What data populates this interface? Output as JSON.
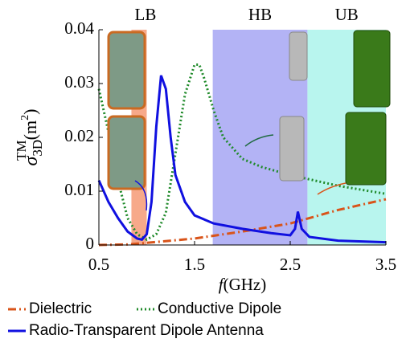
{
  "chart_data": {
    "type": "line",
    "xlabel": [
      "f",
      "(GHz)"
    ],
    "ylabel": [
      "σ",
      "3D",
      "TM",
      "(m",
      "2",
      ")"
    ],
    "xlim": [
      0.5,
      3.5
    ],
    "xticks": [
      0.5,
      1.5,
      2.5,
      3.5
    ],
    "ylim": [
      0,
      0.04
    ],
    "yticks": [
      0,
      0.01,
      0.02,
      0.03,
      0.04
    ],
    "grid": false,
    "bands": [
      {
        "label": "LB",
        "range": [
          0.84,
          1.0
        ],
        "color": "#f7a98a"
      },
      {
        "label": "HB",
        "range": [
          1.69,
          2.68
        ],
        "color": "#b3b3f5"
      },
      {
        "label": "UB",
        "range": [
          2.68,
          3.5
        ],
        "color": "#b8f5ee"
      }
    ],
    "series": [
      {
        "name": "Dielectric",
        "color": "#d9541a",
        "dash": "10 4 2 4",
        "x": [
          0.5,
          0.8,
          1.0,
          1.5,
          2.0,
          2.5,
          3.0,
          3.5
        ],
        "values": [
          0,
          0.0001,
          0.0004,
          0.0012,
          0.0025,
          0.004,
          0.0065,
          0.0085
        ]
      },
      {
        "name": "Conductive Dipole",
        "color": "#1f8a2a",
        "dash": "2 3",
        "x": [
          0.5,
          0.6,
          0.7,
          0.8,
          0.9,
          1.0,
          1.1,
          1.2,
          1.3,
          1.4,
          1.5,
          1.55,
          1.6,
          1.7,
          1.8,
          2.0,
          2.2,
          2.5,
          3.0,
          3.5
        ],
        "values": [
          0.029,
          0.021,
          0.012,
          0.005,
          0.002,
          0.001,
          0.002,
          0.006,
          0.017,
          0.028,
          0.0335,
          0.0335,
          0.031,
          0.025,
          0.02,
          0.016,
          0.0145,
          0.013,
          0.011,
          0.0095
        ]
      },
      {
        "name": "Radio-Transparent Dipole Antenna",
        "color": "#1010e0",
        "dash": "",
        "x": [
          0.5,
          0.6,
          0.7,
          0.8,
          0.9,
          0.95,
          1.0,
          1.05,
          1.1,
          1.15,
          1.2,
          1.25,
          1.3,
          1.4,
          1.5,
          1.7,
          2.0,
          2.3,
          2.5,
          2.55,
          2.58,
          2.62,
          2.7,
          3.0,
          3.5
        ],
        "values": [
          0.012,
          0.008,
          0.005,
          0.0025,
          0.0012,
          0.001,
          0.002,
          0.008,
          0.022,
          0.0315,
          0.029,
          0.02,
          0.013,
          0.008,
          0.0055,
          0.004,
          0.003,
          0.0022,
          0.0018,
          0.003,
          0.0062,
          0.003,
          0.0015,
          0.0008,
          0.0005
        ]
      }
    ]
  }
}
